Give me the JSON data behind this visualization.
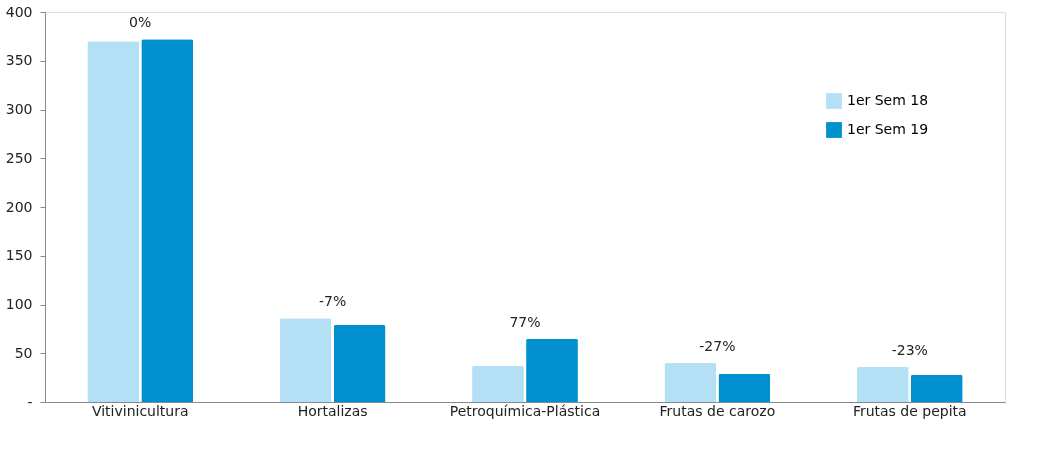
{
  "chart_data": {
    "type": "bar",
    "categories": [
      "Vitivinicultura",
      "Hortalizas",
      "Petroquímica-Plástica",
      "Frutas de carozo",
      "Frutas de pepita"
    ],
    "series": [
      {
        "name": "1er Sem 18",
        "color": "#b3e0f5",
        "values": [
          370,
          86,
          37,
          40,
          36
        ]
      },
      {
        "name": "1er Sem 19",
        "color": "#0090d0",
        "values": [
          372,
          79,
          65,
          29,
          28
        ]
      }
    ],
    "ylim": [
      0,
      400
    ],
    "yticks": [
      {
        "value": 0,
        "label": "-"
      },
      50,
      100,
      150,
      200,
      250,
      300,
      350,
      400
    ],
    "annotations": [
      {
        "text": "0%",
        "x": "Vitivinicultura",
        "y": 372
      },
      {
        "text": "-7%",
        "x": "Hortalizas",
        "y": 86
      },
      {
        "text": "77%",
        "x": "Petroquímica-Plástica",
        "y": 65
      },
      {
        "text": "-27%",
        "x": "Frutas de carozo",
        "y": 40
      },
      {
        "text": "-23%",
        "x": "Frutas de pepita",
        "y": 36
      }
    ],
    "grid": false,
    "legend": "top right"
  }
}
